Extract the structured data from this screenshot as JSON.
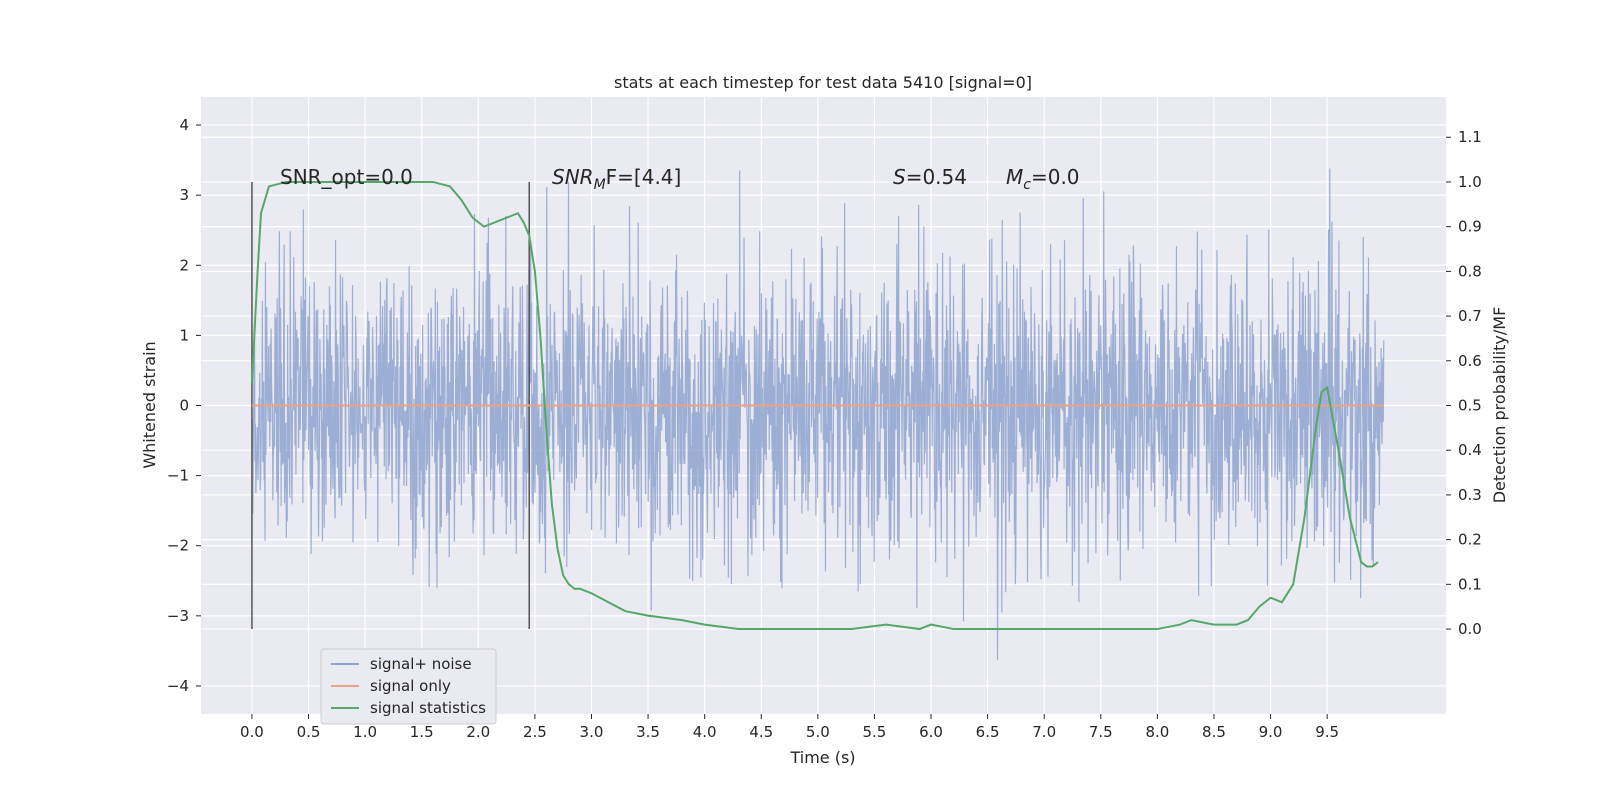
{
  "chart_data": {
    "type": "line",
    "title": "stats at each timestep for test data 5410 [signal=0]",
    "xlabel": "Time (s)",
    "ylabel": "Whitened strain",
    "y2label": "Detection probability/MF",
    "xlim": [
      -0.45,
      10.55
    ],
    "ylim": [
      -4.4,
      4.4
    ],
    "y2lim": [
      -0.19,
      1.19
    ],
    "x_ticks": [
      "0.0",
      "0.5",
      "1.0",
      "1.5",
      "2.0",
      "2.5",
      "3.0",
      "3.5",
      "4.0",
      "4.5",
      "5.0",
      "5.5",
      "6.0",
      "6.5",
      "7.0",
      "7.5",
      "8.0",
      "8.5",
      "9.0",
      "9.5"
    ],
    "y_ticks": [
      "4",
      "3",
      "2",
      "1",
      "0",
      "−1",
      "−2",
      "−3",
      "−4"
    ],
    "y2_ticks": [
      "1.1",
      "1.0",
      "0.9",
      "0.8",
      "0.7",
      "0.6",
      "0.5",
      "0.4",
      "0.3",
      "0.2",
      "0.1",
      "0.0"
    ],
    "grid": true,
    "legend_position": "lower-left",
    "series": [
      {
        "name": "signal+ noise",
        "color": "#8fa3cf",
        "axis": "left",
        "description_only": true
      },
      {
        "name": "signal only",
        "color": "#e8a488",
        "axis": "left",
        "x": [
          0.0,
          10.0
        ],
        "y": [
          0.0,
          0.0
        ]
      },
      {
        "name": "signal statistics",
        "color": "#55a868",
        "axis": "right",
        "x": [
          0.0,
          0.05,
          0.08,
          0.15,
          0.3,
          0.6,
          1.0,
          1.4,
          1.6,
          1.75,
          1.85,
          1.95,
          2.05,
          2.15,
          2.25,
          2.35,
          2.4,
          2.45,
          2.5,
          2.55,
          2.6,
          2.65,
          2.7,
          2.75,
          2.8,
          2.85,
          2.9,
          3.0,
          3.15,
          3.3,
          3.5,
          3.8,
          4.0,
          4.3,
          4.5,
          5.0,
          5.3,
          5.6,
          5.9,
          6.0,
          6.2,
          6.5,
          7.0,
          7.5,
          8.0,
          8.2,
          8.3,
          8.5,
          8.7,
          8.8,
          8.9,
          9.0,
          9.1,
          9.2,
          9.3,
          9.4,
          9.45,
          9.5,
          9.6,
          9.7,
          9.8,
          9.85,
          9.9,
          9.95
        ],
        "y": [
          0.55,
          0.8,
          0.93,
          0.99,
          1.0,
          1.0,
          1.0,
          1.0,
          1.0,
          0.99,
          0.96,
          0.92,
          0.9,
          0.91,
          0.92,
          0.93,
          0.91,
          0.88,
          0.8,
          0.65,
          0.45,
          0.28,
          0.18,
          0.12,
          0.1,
          0.09,
          0.09,
          0.08,
          0.06,
          0.04,
          0.03,
          0.02,
          0.01,
          0.0,
          0.0,
          0.0,
          0.0,
          0.01,
          0.0,
          0.01,
          0.0,
          0.0,
          0.0,
          0.0,
          0.0,
          0.01,
          0.02,
          0.01,
          0.01,
          0.02,
          0.05,
          0.07,
          0.06,
          0.1,
          0.25,
          0.45,
          0.53,
          0.54,
          0.4,
          0.25,
          0.15,
          0.14,
          0.14,
          0.15
        ]
      }
    ],
    "vertical_lines": [
      0.0,
      2.45
    ]
  },
  "annotations": {
    "snr_opt": "SNR_opt=0.0",
    "snr_mf_italic": "SNR",
    "snr_mf_sub": "M",
    "snr_mf_rest": "F=[4.4]",
    "s_label_italic": "S",
    "s_label_rest": "=0.54",
    "mc_label_italic": "M",
    "mc_label_sub": "c",
    "mc_label_rest": "=0.0"
  },
  "legend": {
    "items": [
      "signal+ noise",
      "signal only",
      "signal statistics"
    ]
  }
}
